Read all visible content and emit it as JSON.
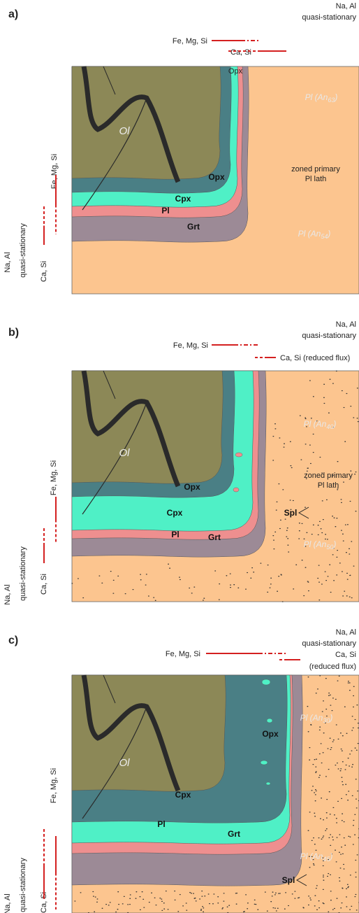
{
  "panels": [
    {
      "label": "a)",
      "top_note": [
        "Na, Al",
        "quasi-stationary"
      ],
      "flux_top": [
        "Fe, Mg, Si",
        "Ca, Si"
      ],
      "minerals": {
        "ol": "Ol",
        "opx": "Opx",
        "cpx": "Cpx",
        "pl": "Pl",
        "grt": "Grt"
      },
      "opx_small": "Opx",
      "zoned": [
        "zoned primary",
        "Pl lath"
      ],
      "pl_upper": {
        "text": "Pl (An",
        "sub": "63",
        "close": ")"
      },
      "pl_lower": {
        "text": "Pl (An",
        "sub": "54",
        "close": ")"
      },
      "side": {
        "fe": "Fe, Mg, Si",
        "na": [
          "Na, Al",
          "quasi-stationary"
        ],
        "ca": "Ca, Si"
      }
    },
    {
      "label": "b)",
      "top_note": [
        "Na, Al",
        "quasi-stationary"
      ],
      "flux_top": [
        "Fe, Mg, Si",
        "Ca, Si (reduced flux)"
      ],
      "minerals": {
        "ol": "Ol",
        "opx": "Opx",
        "cpx": "Cpx",
        "pl": "Pl",
        "grt": "Grt"
      },
      "zoned": [
        "zoned primary",
        "Pl lath"
      ],
      "spl": "Spl",
      "pl_upper": {
        "text": "Pl (An",
        "sub": "40",
        "close": ")"
      },
      "pl_lower": {
        "text": "Pl (An",
        "sub": "50",
        "close": ")"
      },
      "side": {
        "fe": "Fe, Mg, Si",
        "na": [
          "Na, Al",
          "quasi-stationary"
        ],
        "ca": "Ca, Si"
      }
    },
    {
      "label": "c)",
      "top_note": [
        "Na, Al",
        "quasi-stationary"
      ],
      "flux_top": [
        "Fe, Mg, Si",
        "Ca, Si",
        "(reduced flux)"
      ],
      "minerals": {
        "ol": "Ol",
        "opx": "Opx",
        "cpx": "Cpx",
        "pl": "Pl",
        "grt": "Grt"
      },
      "spl": "Spl",
      "pl_upper": {
        "text": "Pl (An",
        "sub": "30",
        "close": ")"
      },
      "pl_lower": {
        "text": "Pl (An",
        "sub": "45",
        "close": ")"
      },
      "side": {
        "fe": "Fe, Mg, Si",
        "na": [
          "Na, Al",
          "quasi-stationary"
        ],
        "ca": "Ca, Si"
      }
    }
  ]
}
